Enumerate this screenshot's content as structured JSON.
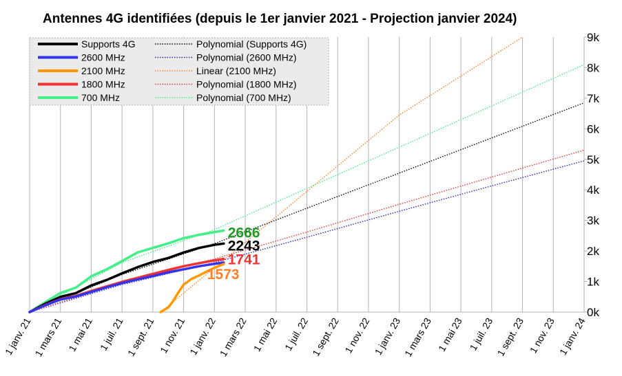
{
  "chart_data": {
    "type": "line",
    "title": "Antennes 4G identifiées (depuis le 1er janvier 2021 - Projection janvier 2024)",
    "xlabel": "",
    "ylabel": "",
    "x_ticks": [
      "1 janv. 21",
      "1 mars 21",
      "1 mai 21",
      "1 juil. 21",
      "1 sept. 21",
      "1 nov. 21",
      "1 janv. 22",
      "1 mars 22",
      "1 mai 22",
      "1 juil. 22",
      "1 sept. 22",
      "1 nov. 22",
      "1 janv. 23",
      "1 mars 23",
      "1 mai 23",
      "1 juil. 23",
      "1 sept. 23",
      "1 nov. 23",
      "1 janv. 24"
    ],
    "y_ticks": [
      "0k",
      "1k",
      "2k",
      "3k",
      "4k",
      "5k",
      "6k",
      "7k",
      "8k",
      "9k"
    ],
    "ylim": [
      0,
      9000
    ],
    "xlim_months": [
      0,
      36
    ],
    "y_axis_side": "right",
    "grid": "vertical",
    "legend_position": "top-left",
    "series": [
      {
        "name": "Supports 4G",
        "color": "#000000",
        "x": [
          0,
          1,
          2,
          3,
          4,
          5,
          6,
          7,
          8,
          9,
          10,
          11,
          12,
          12.6
        ],
        "values": [
          0,
          270,
          500,
          620,
          870,
          1050,
          1270,
          1470,
          1640,
          1770,
          1950,
          2100,
          2200,
          2243
        ]
      },
      {
        "name": "2600 MHz",
        "color": "#3333ee",
        "x": [
          0,
          1,
          2,
          3,
          4,
          5,
          6,
          7,
          8,
          9,
          10,
          11,
          12,
          12.6
        ],
        "values": [
          0,
          220,
          410,
          510,
          660,
          810,
          950,
          1070,
          1180,
          1300,
          1400,
          1500,
          1580,
          1620
        ]
      },
      {
        "name": "2100 MHz",
        "color": "#ff9900",
        "x": [
          8.5,
          9,
          9.3,
          9.6,
          10,
          10.5,
          11,
          11.5,
          12,
          12.6
        ],
        "values": [
          0,
          150,
          350,
          600,
          900,
          1080,
          1200,
          1330,
          1450,
          1573
        ]
      },
      {
        "name": "1800 MHz",
        "color": "#ee3333",
        "x": [
          0,
          1,
          2,
          3,
          4,
          5,
          6,
          7,
          8,
          9,
          10,
          11,
          12,
          12.6
        ],
        "values": [
          0,
          230,
          420,
          530,
          690,
          840,
          990,
          1120,
          1250,
          1380,
          1500,
          1600,
          1690,
          1741
        ]
      },
      {
        "name": "700 MHz",
        "color": "#44ee88",
        "x": [
          0,
          1,
          2,
          3,
          4,
          5,
          6,
          7,
          8,
          9,
          10,
          11,
          12,
          12.6
        ],
        "values": [
          0,
          320,
          620,
          800,
          1170,
          1400,
          1670,
          1950,
          2100,
          2250,
          2420,
          2530,
          2620,
          2666
        ]
      }
    ],
    "trendlines": [
      {
        "name": "Polynomial (Supports 4G)",
        "color": "#000000",
        "x": [
          0,
          6,
          12,
          18,
          24,
          30,
          36
        ],
        "values": [
          0,
          1230,
          2240,
          3400,
          4550,
          5700,
          6850
        ]
      },
      {
        "name": "Polynomial (2600 MHz)",
        "color": "#2222cc",
        "x": [
          0,
          6,
          12,
          18,
          24,
          30,
          36
        ],
        "values": [
          0,
          900,
          1620,
          2450,
          3300,
          4130,
          4950
        ]
      },
      {
        "name": "Linear (2100 MHz)",
        "color": "#ff7f27",
        "x": [
          8.5,
          12,
          18,
          24,
          32
        ],
        "values": [
          0,
          1450,
          3950,
          6450,
          9000
        ]
      },
      {
        "name": "Polynomial (1800 MHz)",
        "color": "#ee3333",
        "x": [
          0,
          6,
          12,
          18,
          24,
          30,
          36
        ],
        "values": [
          0,
          960,
          1740,
          2620,
          3530,
          4420,
          5300
        ]
      },
      {
        "name": "Polynomial (700 MHz)",
        "color": "#44ee88",
        "x": [
          0,
          6,
          12,
          18,
          24,
          30,
          36
        ],
        "values": [
          0,
          1620,
          2700,
          4050,
          5400,
          6750,
          8100
        ]
      }
    ],
    "end_labels": [
      {
        "text": "2666",
        "color": "#229922",
        "y": 2666
      },
      {
        "text": "2243",
        "color": "#000000",
        "y": 2243
      },
      {
        "text": "1741",
        "color": "#ee3333",
        "y": 1741
      },
      {
        "text": "1573",
        "color": "#ff7f27",
        "y": 1573
      }
    ]
  }
}
